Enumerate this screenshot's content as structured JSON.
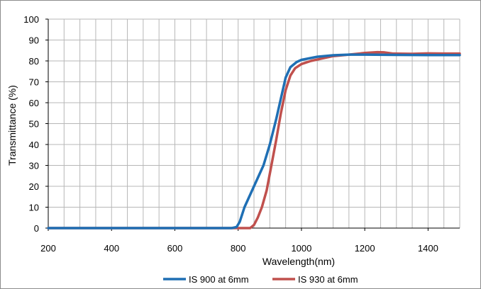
{
  "chart_data": {
    "type": "line",
    "title": "",
    "xlabel": "Wavelength(nm)",
    "ylabel": "Transmittance (%)",
    "xlim": [
      200,
      1500
    ],
    "ylim": [
      0,
      100
    ],
    "x_tick_labels": [
      "200",
      "400",
      "600",
      "800",
      "1000",
      "1200",
      "1400"
    ],
    "y_tick_labels": [
      "0",
      "10",
      "20",
      "30",
      "40",
      "50",
      "60",
      "70",
      "80",
      "90",
      "100"
    ],
    "grid": true,
    "legend_position": "bottom",
    "series": [
      {
        "name": "IS 900 at 6mm",
        "color": "#1f6fb4",
        "points": [
          [
            200,
            0
          ],
          [
            780,
            0
          ],
          [
            795,
            0.5
          ],
          [
            805,
            3
          ],
          [
            820,
            10
          ],
          [
            850,
            20
          ],
          [
            880,
            30
          ],
          [
            900,
            40
          ],
          [
            920,
            52
          ],
          [
            935,
            62
          ],
          [
            950,
            72
          ],
          [
            965,
            77
          ],
          [
            985,
            79.5
          ],
          [
            1000,
            80.5
          ],
          [
            1050,
            82
          ],
          [
            1100,
            82.7
          ],
          [
            1150,
            83
          ],
          [
            1200,
            83
          ],
          [
            1300,
            82.9
          ],
          [
            1400,
            82.8
          ],
          [
            1500,
            82.8
          ]
        ]
      },
      {
        "name": "IS 930 at 6mm",
        "color": "#c0504d",
        "points": [
          [
            200,
            0
          ],
          [
            838,
            0
          ],
          [
            850,
            1.5
          ],
          [
            862,
            5
          ],
          [
            875,
            10
          ],
          [
            890,
            18
          ],
          [
            905,
            30
          ],
          [
            920,
            42
          ],
          [
            935,
            55
          ],
          [
            950,
            66
          ],
          [
            965,
            73
          ],
          [
            980,
            76.5
          ],
          [
            1000,
            78.5
          ],
          [
            1030,
            80
          ],
          [
            1060,
            81
          ],
          [
            1100,
            82.3
          ],
          [
            1150,
            83
          ],
          [
            1200,
            83.8
          ],
          [
            1240,
            84.2
          ],
          [
            1260,
            84.1
          ],
          [
            1290,
            83.5
          ],
          [
            1350,
            83.4
          ],
          [
            1400,
            83.6
          ],
          [
            1450,
            83.5
          ],
          [
            1500,
            83.5
          ]
        ]
      }
    ]
  }
}
